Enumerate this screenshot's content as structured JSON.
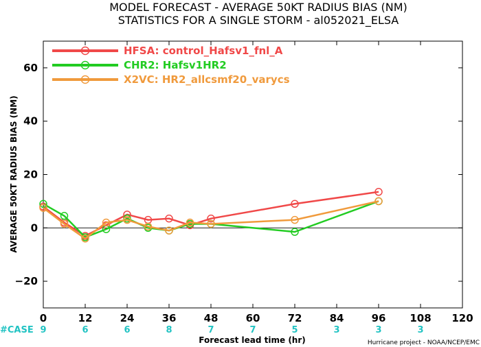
{
  "chart_data": {
    "type": "line",
    "title_line1": "MODEL FORECAST - AVERAGE 50KT RADIUS BIAS (NM)",
    "title_line2": "STATISTICS FOR A SINGLE STORM - al052021_ELSA",
    "xlabel": "Forecast lead time (hr)",
    "ylabel": "AVERAGE 50KT RADIUS BIAS (NM)",
    "xlim": [
      0,
      120
    ],
    "ylim": [
      -30,
      70
    ],
    "xticks": [
      0,
      12,
      24,
      36,
      48,
      60,
      72,
      84,
      96,
      108,
      120
    ],
    "yticks": [
      -20,
      0,
      20,
      40,
      60
    ],
    "zero_line": true,
    "grid": false,
    "legend_position": "top-left",
    "series": [
      {
        "name": "HFSA: control_Hafsv1_fnl_A",
        "color": "#f04848",
        "x": [
          0,
          6,
          12,
          18,
          24,
          30,
          36,
          42,
          48,
          72,
          96
        ],
        "values": [
          8,
          2,
          -3,
          1,
          5,
          3,
          3.5,
          1,
          3.5,
          9,
          13.5
        ]
      },
      {
        "name": "CHR2: Hafsv1HR2",
        "color": "#22cc22",
        "x": [
          0,
          6,
          12,
          18,
          24,
          30,
          36,
          42,
          48,
          72,
          96
        ],
        "values": [
          9,
          4.5,
          -3.5,
          -0.5,
          3.5,
          0,
          -1,
          1.5,
          1.5,
          -1.5,
          10
        ]
      },
      {
        "name": "X2VC: HR2_allcsmf20_varycs",
        "color": "#f09a3c",
        "x": [
          0,
          6,
          12,
          18,
          24,
          30,
          36,
          42,
          48,
          72,
          96
        ],
        "values": [
          7.5,
          1.5,
          -4,
          2,
          3,
          0.5,
          -1,
          2,
          1.5,
          3,
          10
        ]
      }
    ],
    "case_label": "#CASE",
    "cases": [
      {
        "x": 0,
        "n": "9"
      },
      {
        "x": 12,
        "n": "6"
      },
      {
        "x": 24,
        "n": "6"
      },
      {
        "x": 36,
        "n": "8"
      },
      {
        "x": 48,
        "n": "7"
      },
      {
        "x": 60,
        "n": "7"
      },
      {
        "x": 72,
        "n": "5"
      },
      {
        "x": 84,
        "n": "3"
      },
      {
        "x": 96,
        "n": "3"
      },
      {
        "x": 108,
        "n": "3"
      }
    ],
    "credit": "Hurricane project - NOAA/NCEP/EMC"
  }
}
